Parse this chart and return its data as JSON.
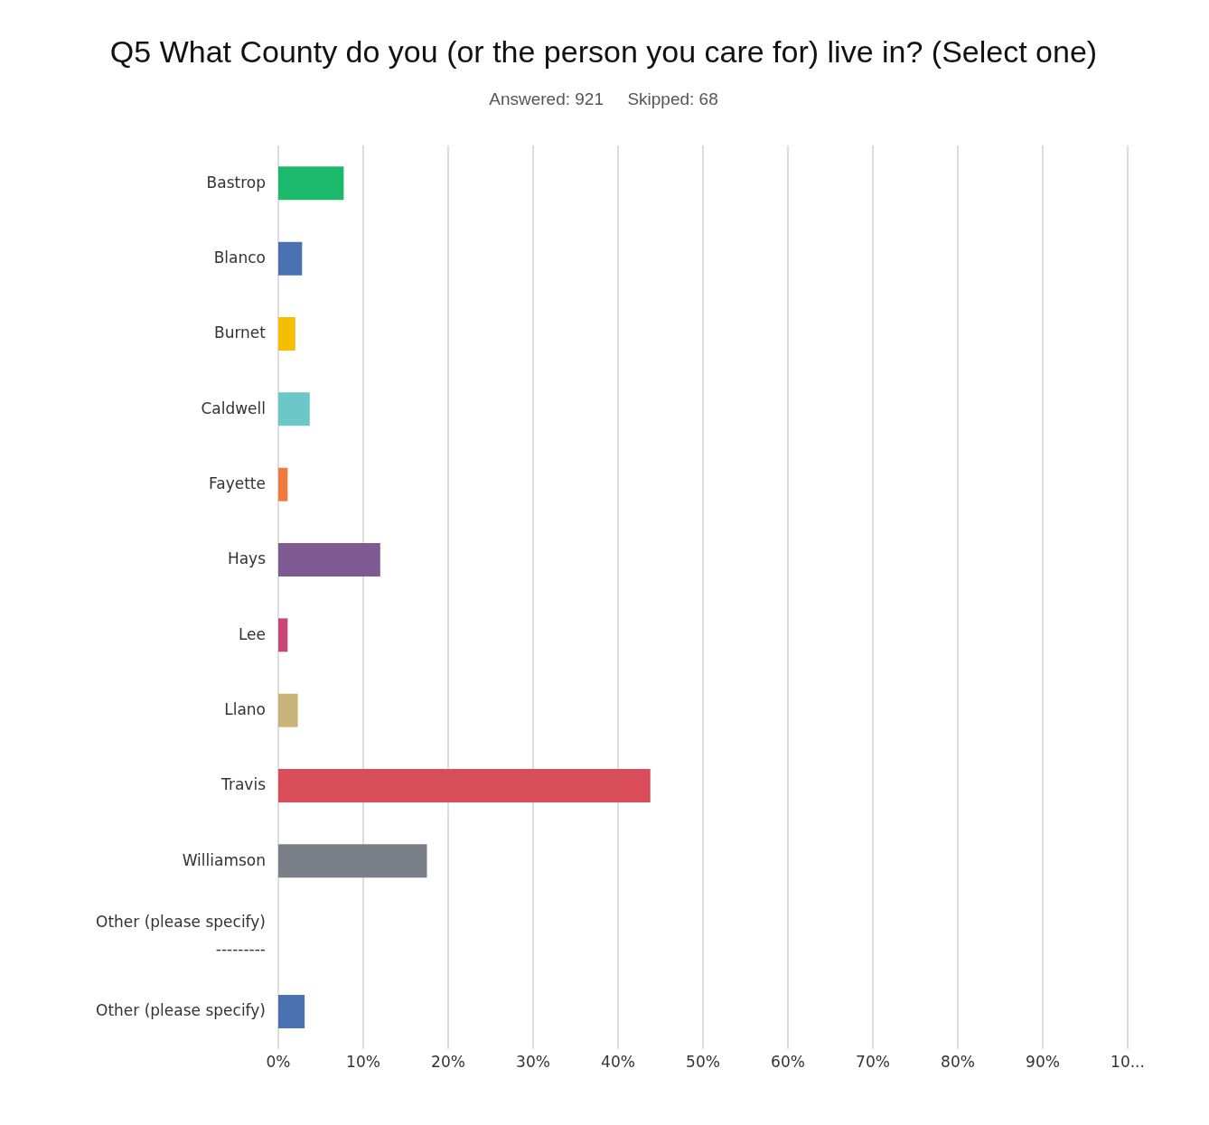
{
  "chart_data": {
    "type": "bar",
    "orientation": "horizontal",
    "title": "Q5 What County do you (or the person you care for) live in? (Select one)",
    "subtitle": "Answered: 921     Skipped: 68",
    "categories": [
      "Bastrop",
      "Blanco",
      "Burnet",
      "Caldwell",
      "Fayette",
      "Hays",
      "Lee",
      "Llano",
      "Travis",
      "Williamson",
      "Other (please specify)\n---------",
      "Other (please specify)"
    ],
    "values": [
      7.7,
      2.8,
      2.0,
      3.7,
      1.1,
      12.0,
      1.1,
      2.3,
      43.8,
      17.5,
      0,
      3.1
    ],
    "colors": [
      "#1cb86c",
      "#4a72b0",
      "#f5be00",
      "#6cc8c8",
      "#f07a3c",
      "#7d5a91",
      "#c84678",
      "#c8b478",
      "#d94c5a",
      "#7a8087",
      "#4a72b0",
      "#4a72b0"
    ],
    "xlim": [
      0,
      100
    ],
    "xticks": [
      {
        "value": 0,
        "label": "0%"
      },
      {
        "value": 10,
        "label": "10%"
      },
      {
        "value": 20,
        "label": "20%"
      },
      {
        "value": 30,
        "label": "30%"
      },
      {
        "value": 40,
        "label": "40%"
      },
      {
        "value": 50,
        "label": "50%"
      },
      {
        "value": 60,
        "label": "60%"
      },
      {
        "value": 70,
        "label": "70%"
      },
      {
        "value": 80,
        "label": "80%"
      },
      {
        "value": 90,
        "label": "90%"
      },
      {
        "value": 100,
        "label": "10..."
      }
    ],
    "grid": "x"
  }
}
